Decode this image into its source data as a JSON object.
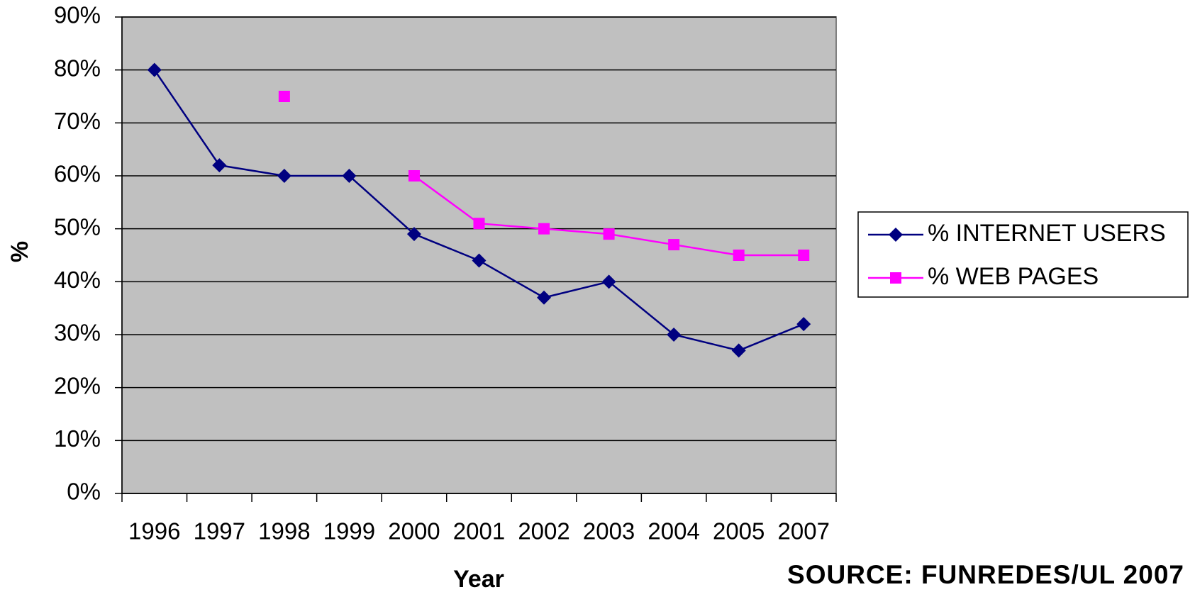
{
  "chart_data": {
    "type": "line",
    "y_label": "%",
    "x_label": "Year",
    "source": "SOURCE: FUNREDES/UL 2007",
    "categories": [
      "1996",
      "1997",
      "1998",
      "1999",
      "2000",
      "2001",
      "2002",
      "2003",
      "2004",
      "2005",
      "2007"
    ],
    "series": [
      {
        "name": "% INTERNET USERS",
        "color": "#000080",
        "marker": "diamond",
        "values": [
          80,
          62,
          60,
          60,
          49,
          44,
          37,
          40,
          30,
          27,
          32
        ]
      },
      {
        "name": "% WEB PAGES",
        "color": "#ff00ff",
        "marker": "square",
        "values": [
          null,
          null,
          75,
          null,
          60,
          51,
          50,
          49,
          47,
          45,
          45
        ]
      }
    ],
    "ylim": [
      0,
      90
    ],
    "yticks": [
      {
        "value": 0,
        "label": "0%"
      },
      {
        "value": 10,
        "label": "10%"
      },
      {
        "value": 20,
        "label": "20%"
      },
      {
        "value": 30,
        "label": "30%"
      },
      {
        "value": 40,
        "label": "40%"
      },
      {
        "value": 50,
        "label": "50%"
      },
      {
        "value": 60,
        "label": "60%"
      },
      {
        "value": 70,
        "label": "70%"
      },
      {
        "value": 80,
        "label": "80%"
      },
      {
        "value": 90,
        "label": "90%"
      }
    ],
    "grid": true,
    "plot_background": "#c0c0c0",
    "legend": "right"
  }
}
